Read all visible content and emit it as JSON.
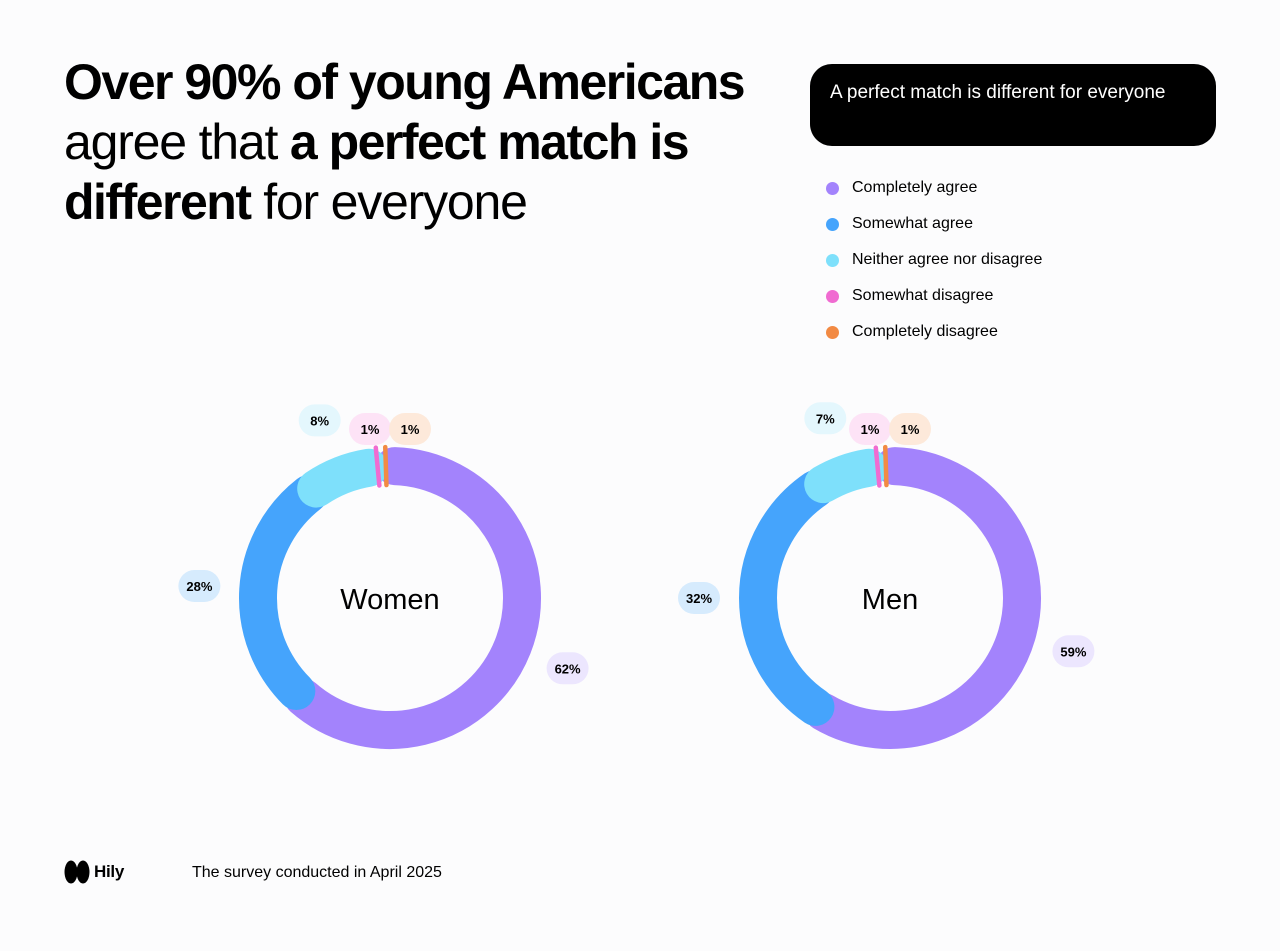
{
  "headline": {
    "part1": "Over 90% of young Americans",
    "part2": "agree that ",
    "part3": "a perfect match is different",
    "part4": " for everyone"
  },
  "pill": {
    "text": "A perfect match is different for everyone"
  },
  "legend": [
    {
      "label": "Completely agree",
      "color": "#a383fc"
    },
    {
      "label": "Somewhat agree",
      "color": "#45a4fc"
    },
    {
      "label": "Neither agree nor disagree",
      "color": "#7ee0fb"
    },
    {
      "label": "Somewhat disagree",
      "color": "#f06bd1"
    },
    {
      "label": "Completely disagree",
      "color": "#f28a43"
    }
  ],
  "chart_data": [
    {
      "type": "pie",
      "subtype": "donut",
      "title": "Women",
      "categories": [
        "Completely agree",
        "Somewhat agree",
        "Neither agree nor disagree",
        "Somewhat disagree",
        "Completely disagree"
      ],
      "values": [
        62,
        28,
        8,
        1,
        1
      ],
      "labels": [
        "62%",
        "28%",
        "8%",
        "1%",
        "1%"
      ]
    },
    {
      "type": "pie",
      "subtype": "donut",
      "title": "Men",
      "categories": [
        "Completely agree",
        "Somewhat agree",
        "Neither agree nor disagree",
        "Somewhat disagree",
        "Completely disagree"
      ],
      "values": [
        59,
        32,
        7,
        1,
        1
      ],
      "labels": [
        "59%",
        "32%",
        "7%",
        "1%",
        "1%"
      ]
    }
  ],
  "label_bg": [
    "#ece6fe",
    "#d6ebfd",
    "#e4f7fd",
    "#fde3f6",
    "#fde9da"
  ],
  "footer": {
    "brand": "Hily",
    "survey": "The survey conducted in April 2025"
  }
}
